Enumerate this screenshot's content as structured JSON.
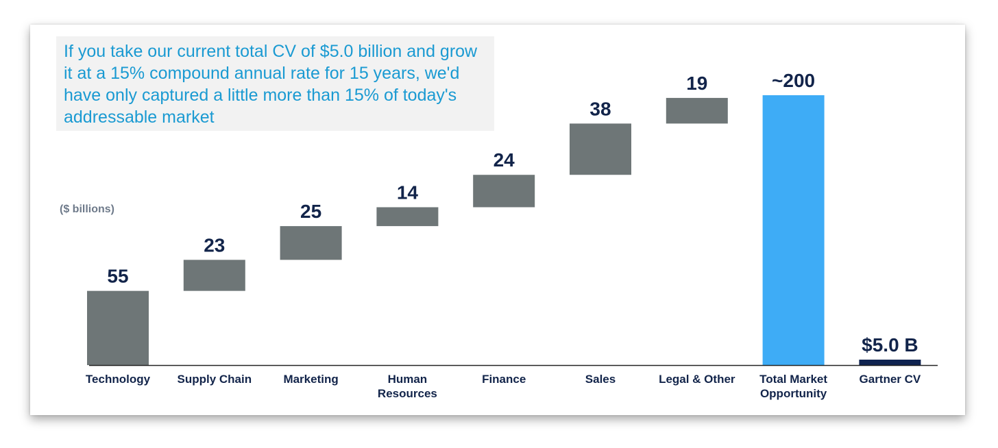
{
  "callout": {
    "text": "If you take our current total CV of $5.0 billion and grow it at a 15% compound annual rate for 15 years, we'd have only captured a little more than 15% of today's addressable market"
  },
  "units_label": "($ billions)",
  "colors": {
    "segment": "#6e7677",
    "total": "#3eacf6",
    "gartner": "#0f2350",
    "label": "#12244a",
    "callout_text": "#1a9ad2",
    "callout_bg": "#f2f2f2"
  },
  "chart_data": {
    "type": "bar",
    "subtype": "waterfall",
    "title": "",
    "ylabel": "($ billions)",
    "ylim": [
      0,
      220
    ],
    "categories": [
      "Technology",
      "Supply Chain",
      "Marketing",
      "Human Resources",
      "Finance",
      "Sales",
      "Legal & Other",
      "Total Market Opportunity",
      "Gartner CV"
    ],
    "category_lines": [
      [
        "Technology"
      ],
      [
        "Supply Chain"
      ],
      [
        "Marketing"
      ],
      [
        "Human",
        "Resources"
      ],
      [
        "Finance"
      ],
      [
        "Sales"
      ],
      [
        "Legal & Other"
      ],
      [
        "Total Market",
        "Opportunity"
      ],
      [
        "Gartner CV"
      ]
    ],
    "values": [
      55,
      23,
      25,
      14,
      24,
      38,
      19,
      200,
      5.0
    ],
    "value_labels": [
      "55",
      "23",
      "25",
      "14",
      "24",
      "38",
      "19",
      "~200",
      "$5.0 B"
    ],
    "kinds": [
      "increment",
      "increment",
      "increment",
      "increment",
      "increment",
      "increment",
      "increment",
      "total",
      "reference"
    ]
  }
}
